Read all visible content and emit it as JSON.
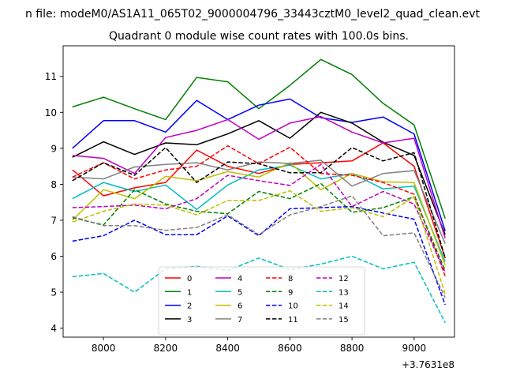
{
  "chart_data": {
    "type": "line",
    "suptitle": "n file: modeM0/AS1A11_065T02_9000004796_33443cztM0_level2_quad_clean.evt",
    "title": "Quadrant 0 module wise count rates with 100.0s bins.",
    "xlabel": "",
    "ylabel": "",
    "x_offset_label": "+3.7631e8",
    "xlim": [
      7870,
      9130
    ],
    "ylim": [
      3.75,
      11.85
    ],
    "xticks": [
      8000,
      8200,
      8400,
      8600,
      8800,
      9000
    ],
    "yticks": [
      4,
      5,
      6,
      7,
      8,
      9,
      10,
      11
    ],
    "grid": false,
    "legend": {
      "location": "lower center",
      "columns": 4
    },
    "x": [
      7900,
      8000,
      8100,
      8200,
      8300,
      8400,
      8500,
      8600,
      8700,
      8800,
      8900,
      9000,
      9100
    ],
    "series": [
      {
        "name": "0",
        "color": "#ff0000",
        "dash": "solid",
        "values": [
          8.4,
          7.68,
          7.9,
          8.05,
          8.95,
          8.5,
          8.3,
          8.55,
          8.6,
          8.65,
          9.15,
          8.5,
          5.95
        ]
      },
      {
        "name": "1",
        "color": "#008000",
        "dash": "solid",
        "values": [
          10.15,
          10.42,
          10.1,
          9.8,
          10.97,
          10.85,
          10.1,
          10.75,
          11.47,
          11.05,
          10.25,
          9.65,
          7.05
        ]
      },
      {
        "name": "2",
        "color": "#0000ff",
        "dash": "solid",
        "values": [
          9.0,
          9.77,
          9.77,
          9.45,
          10.33,
          9.8,
          10.2,
          10.37,
          9.85,
          9.72,
          9.87,
          9.4,
          6.7
        ]
      },
      {
        "name": "3",
        "color": "#000000",
        "dash": "solid",
        "values": [
          8.75,
          9.18,
          8.83,
          9.15,
          9.1,
          9.4,
          9.77,
          9.28,
          10.0,
          9.7,
          9.17,
          8.8,
          6.6
        ]
      },
      {
        "name": "4",
        "color": "#bf00bf",
        "dash": "solid",
        "values": [
          8.8,
          8.72,
          8.3,
          9.3,
          9.5,
          9.8,
          9.25,
          9.7,
          9.88,
          9.45,
          9.15,
          9.28,
          6.5
        ]
      },
      {
        "name": "5",
        "color": "#00bfbf",
        "dash": "solid",
        "values": [
          7.6,
          8.05,
          7.8,
          7.98,
          7.3,
          7.98,
          8.4,
          8.53,
          8.15,
          8.3,
          7.87,
          7.95,
          5.85
        ]
      },
      {
        "name": "6",
        "color": "#bfbf00",
        "dash": "solid",
        "values": [
          7.0,
          7.85,
          7.6,
          8.22,
          8.1,
          8.35,
          8.2,
          8.6,
          7.85,
          8.3,
          8.07,
          8.05,
          5.75
        ]
      },
      {
        "name": "7",
        "color": "#808080",
        "dash": "solid",
        "values": [
          8.2,
          8.15,
          8.48,
          8.55,
          8.6,
          8.4,
          8.62,
          8.58,
          8.67,
          7.95,
          8.3,
          8.38,
          6.35
        ]
      },
      {
        "name": "8",
        "color": "#ff0000",
        "dash": "dashed",
        "values": [
          8.2,
          8.6,
          8.15,
          8.4,
          8.5,
          9.07,
          8.57,
          9.03,
          8.3,
          8.25,
          8.05,
          7.72,
          5.45
        ]
      },
      {
        "name": "9",
        "color": "#008000",
        "dash": "dashed",
        "values": [
          7.07,
          6.87,
          7.85,
          7.45,
          7.25,
          7.18,
          7.8,
          7.6,
          8.02,
          7.22,
          7.35,
          7.65,
          5.6
        ]
      },
      {
        "name": "10",
        "color": "#0000ff",
        "dash": "dashed",
        "values": [
          6.42,
          6.57,
          7.0,
          6.6,
          6.6,
          7.12,
          6.57,
          7.32,
          7.35,
          7.38,
          7.2,
          7.03,
          4.65
        ]
      },
      {
        "name": "11",
        "color": "#000000",
        "dash": "dashed",
        "values": [
          8.1,
          8.6,
          8.25,
          9.02,
          8.05,
          8.62,
          8.57,
          8.32,
          8.32,
          9.02,
          8.65,
          8.88,
          5.95
        ]
      },
      {
        "name": "12",
        "color": "#bf00bf",
        "dash": "dashed",
        "values": [
          7.35,
          7.38,
          7.42,
          7.32,
          7.6,
          8.25,
          8.1,
          7.97,
          8.55,
          7.38,
          7.8,
          7.45,
          5.55
        ]
      },
      {
        "name": "13",
        "color": "#00bfbf",
        "dash": "dashed",
        "values": [
          5.43,
          5.52,
          5.0,
          5.65,
          5.72,
          5.6,
          5.95,
          5.63,
          5.78,
          6.0,
          5.65,
          5.83,
          4.15
        ]
      },
      {
        "name": "14",
        "color": "#bfbf00",
        "dash": "dashed",
        "values": [
          6.95,
          7.25,
          7.45,
          7.42,
          7.15,
          7.55,
          7.55,
          7.82,
          7.25,
          7.35,
          7.1,
          7.65,
          4.95
        ]
      },
      {
        "name": "15",
        "color": "#808080",
        "dash": "dashed",
        "values": [
          7.1,
          6.85,
          6.85,
          6.72,
          6.8,
          7.15,
          6.6,
          7.15,
          7.38,
          7.68,
          6.57,
          6.65,
          4.85
        ]
      }
    ]
  }
}
